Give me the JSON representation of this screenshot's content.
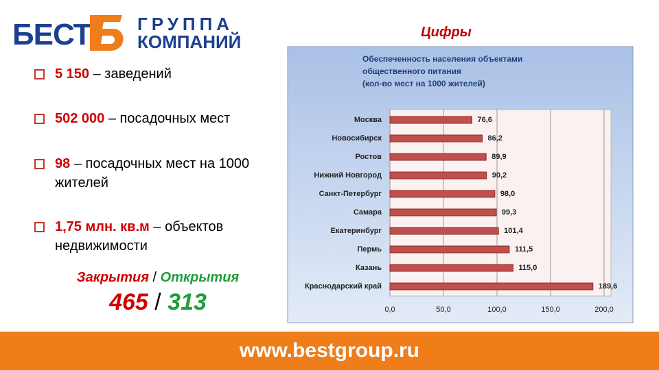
{
  "logo": {
    "name": "БЕСТ",
    "line1": "ГРУППА",
    "line2": "КОМПАНИЙ"
  },
  "heading": "Цифры",
  "facts": [
    {
      "value": "5 150",
      "text": "– заведений"
    },
    {
      "value": "502 000",
      "text": "– посадочных мест"
    },
    {
      "value": "98",
      "text": "– посадочных мест на 1000 жителей"
    },
    {
      "value": "1,75 млн. кв.м",
      "text": "– объектов недвижимости"
    }
  ],
  "closures": {
    "closed_label": "Закрытия",
    "separator": "/",
    "opened_label": "Открытия",
    "closed": "465",
    "opened": "313"
  },
  "footer": "www.bestgroup.ru",
  "chart_data": {
    "type": "bar",
    "orientation": "horizontal",
    "title": [
      "Обеспеченность населения объектами",
      "общественного питания",
      "(кол-во мест на 1000 жителей)"
    ],
    "categories": [
      "Москва",
      "Новосибирск",
      "Ростов",
      "Нижний Новгород",
      "Санкт-Петербург",
      "Самара",
      "Екатеринбург",
      "Пермь",
      "Казань",
      "Краснодарский край"
    ],
    "values": [
      76.6,
      86.2,
      89.9,
      90.2,
      98.0,
      99.3,
      101.4,
      111.5,
      115.0,
      189.6
    ],
    "value_labels": [
      "76,6",
      "86,2",
      "89,9",
      "90,2",
      "98,0",
      "99,3",
      "101,4",
      "111,5",
      "115,0",
      "189,6"
    ],
    "color": "#c0504d",
    "xlim": [
      0,
      200
    ],
    "xticks": [
      {
        "value": 0,
        "label": "0,0"
      },
      {
        "value": 50,
        "label": "50,0"
      },
      {
        "value": 100,
        "label": "100,0"
      },
      {
        "value": 150,
        "label": "150,0"
      },
      {
        "value": 200,
        "label": "200,0"
      }
    ],
    "grid": true
  }
}
